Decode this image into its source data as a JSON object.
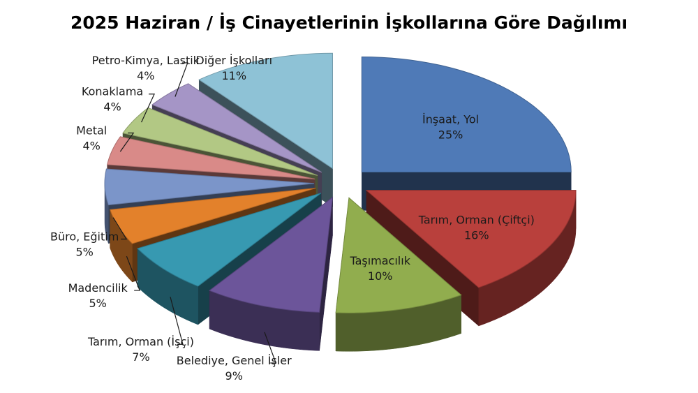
{
  "chart_data": {
    "type": "pie",
    "title": "2025 Haziran / İş Cinayetlerinin İşkollarına Göre Dağılımı",
    "categories": [
      "İnşaat, Yol",
      "Tarım, Orman (Çiftçi)",
      "Taşımacılık",
      "Belediye, Genel İşler",
      "Tarım, Orman (İşçi)",
      "Madencilik",
      "Büro, Eğitim",
      "Metal",
      "Konaklama",
      "Petro-Kimya, Lastik",
      "Diğer İşkolları"
    ],
    "values": [
      25,
      16,
      10,
      9,
      7,
      5,
      5,
      4,
      4,
      4,
      11
    ],
    "labels": [
      "25%",
      "16%",
      "10%",
      "9%",
      "7%",
      "5%",
      "5%",
      "4%",
      "4%",
      "4%",
      "11%"
    ],
    "colors": [
      "#4f7ab7",
      "#b9403c",
      "#91ad4e",
      "#6c559a",
      "#3799b1",
      "#e3812b",
      "#7b95c9",
      "#d98a88",
      "#b2c884",
      "#a595c6",
      "#8ec2d6"
    ],
    "exploded": true,
    "legend": "none"
  }
}
